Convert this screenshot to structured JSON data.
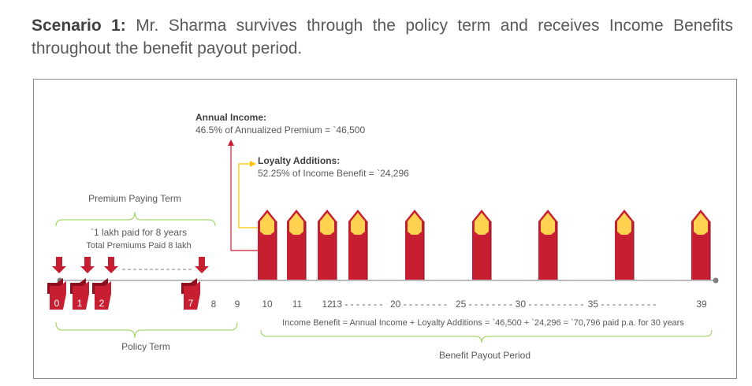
{
  "heading": {
    "scenario_label": "Scenario 1:",
    "text": "Mr. Sharma survives through the policy term and receives Income Benefits throughout the benefit payout period."
  },
  "annual_income": {
    "title": "Annual Income:",
    "detail": "46.5% of Annualized Premium = `46,500"
  },
  "loyalty": {
    "title": "Loyalty Additions:",
    "detail": "52.25% of Income Benefit = `24,296"
  },
  "premium_paying_term": {
    "label": "Premium Paying Term",
    "line1": "`1 lakh paid for 8 years",
    "line2": "Total Premiums  Paid 8 lakh"
  },
  "timeline": {
    "premium_years": [
      "0",
      "1",
      "2",
      "7"
    ],
    "plain_years": [
      "8",
      "9",
      "10",
      "11",
      "12"
    ],
    "dashed_years": [
      {
        "label": "13",
        "dashes": "- - - - - - -"
      },
      {
        "label": "20",
        "dashes": "- - - - - - - -"
      },
      {
        "label": "25",
        "dashes": "- - - - - - - -"
      },
      {
        "label": "30",
        "dashes": "- - - - - - - - - -"
      },
      {
        "label": "35",
        "dashes": "- - - - - - - - - -"
      },
      {
        "label": "39",
        "dashes": ""
      }
    ],
    "benefit_years": [
      10,
      11,
      12,
      13,
      20,
      25,
      30,
      35,
      39
    ]
  },
  "policy_term": {
    "label": "Policy Term"
  },
  "income_benefit_formula": "Income Benefit = Annual Income + Loyalty Additions = `46,500  + `24,296  = `70,796 paid p.a. for 30 years",
  "benefit_payout_period": {
    "label": "Benefit Payout Period"
  },
  "colors": {
    "red": "#c81e32",
    "dark_red": "#8e1020",
    "gold": "#ffd24f",
    "green": "#92d050",
    "line": "#a6a6a6"
  }
}
